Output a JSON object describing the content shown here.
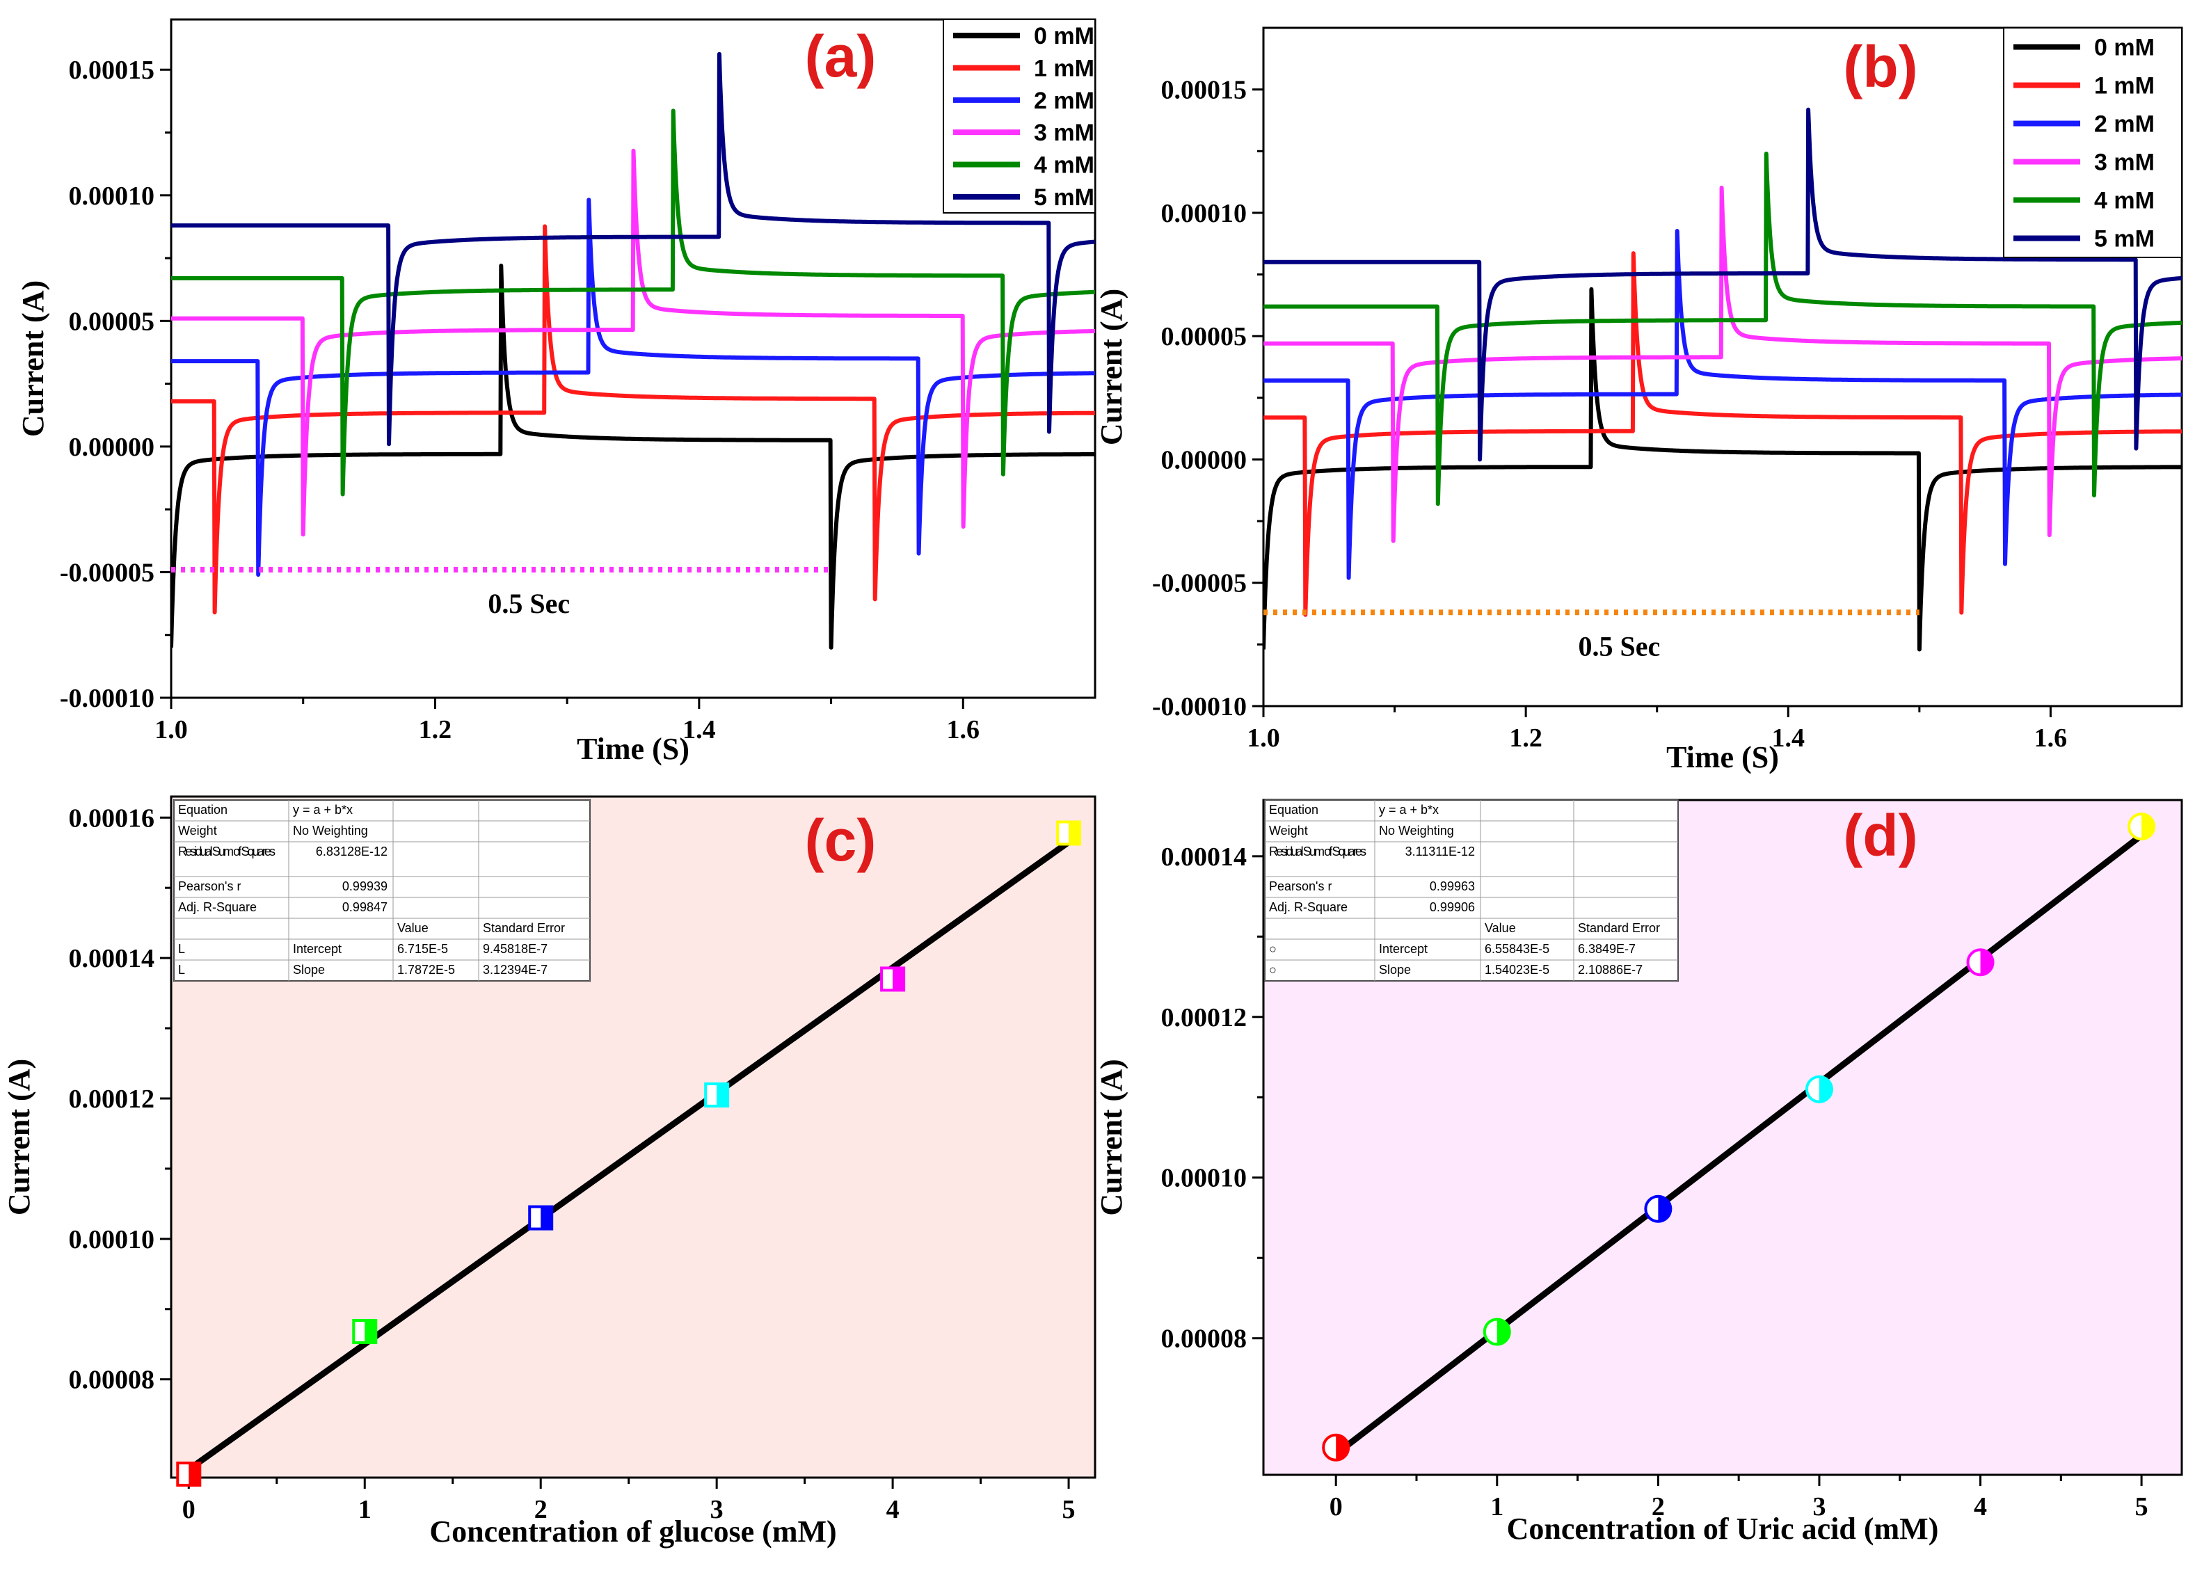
{
  "figure": {
    "palette": {
      "c0": "#000000",
      "c1": "#ff1a1a",
      "c2": "#1a1aff",
      "c3": "#ff33ff",
      "c4": "#008800",
      "c5": "#000080",
      "dot_a": "#ff33ff",
      "dot_b": "#f5850f",
      "bg_c": "#fde8e6",
      "bg_d": "#fde8fd",
      "marker_colors": [
        "#ff0000",
        "#00ff00",
        "#0000ff",
        "#00ffff",
        "#ff00ff",
        "#ffff00"
      ]
    }
  },
  "chart_data": [
    {
      "panel": "a",
      "type": "line",
      "label": "(a)",
      "xlabel": "Time (S)",
      "ylabel": "Current (A)",
      "xlim": [
        1.0,
        1.7
      ],
      "ylim": [
        -0.0001,
        0.00017
      ],
      "xticks": [
        1.0,
        1.2,
        1.4,
        1.6
      ],
      "xtick_labels": [
        "1.0",
        "1.2",
        "1.4",
        "1.6"
      ],
      "yticks": [
        -0.0001,
        -5e-05,
        0.0,
        5e-05,
        0.0001,
        0.00015
      ],
      "ytick_labels": [
        "-0.00010",
        "-0.00005",
        "0.00000",
        "0.00005",
        "0.00010",
        "0.00015"
      ],
      "legend_position": "top-right",
      "series": [
        {
          "name": "0 mM",
          "delay": 0.0,
          "pre": 0.0,
          "base_on": -1.5e-06,
          "peak_on": 6.8e-05,
          "neg_peak": -7.6e-05
        },
        {
          "name": "1 mM",
          "delay": 0.033,
          "pre": 1.8e-05,
          "base_on": 1.5e-05,
          "peak_on": 8.6e-05,
          "neg_peak": -6.2e-05
        },
        {
          "name": "2 mM",
          "delay": 0.066,
          "pre": 3.4e-05,
          "base_on": 3.1e-05,
          "peak_on": 0.000102,
          "neg_peak": -4.7e-05
        },
        {
          "name": "3 mM",
          "delay": 0.1,
          "pre": 5.1e-05,
          "base_on": 4.8e-05,
          "peak_on": 0.000119,
          "neg_peak": -3.1e-05
        },
        {
          "name": "4 mM",
          "delay": 0.13,
          "pre": 6.7e-05,
          "base_on": 6.4e-05,
          "peak_on": 0.000137,
          "neg_peak": -1.5e-05
        },
        {
          "name": "5 mM",
          "delay": 0.165,
          "pre": 8.8e-05,
          "base_on": 8.5e-05,
          "peak_on": 0.000158,
          "neg_peak": 5e-06
        }
      ],
      "annotation": {
        "text": "0.5 Sec",
        "y": -4.9e-05,
        "x_start": 1.0,
        "x_end": 1.5
      }
    },
    {
      "panel": "b",
      "type": "line",
      "label": "(b)",
      "xlabel": "Time (S)",
      "ylabel": "Current (A)",
      "xlim": [
        1.0,
        1.7
      ],
      "ylim": [
        -0.0001,
        0.000175
      ],
      "xticks": [
        1.0,
        1.2,
        1.4,
        1.6
      ],
      "xtick_labels": [
        "1.0",
        "1.2",
        "1.4",
        "1.6"
      ],
      "yticks": [
        -0.0001,
        -5e-05,
        0.0,
        5e-05,
        0.0001,
        0.00015
      ],
      "ytick_labels": [
        "-0.00010",
        "-0.00005",
        "0.00000",
        "0.00005",
        "0.00010",
        "0.00015"
      ],
      "legend_position": "top-right",
      "series": [
        {
          "name": "0 mM",
          "delay": 0.0,
          "pre": -5e-06,
          "base_on": -1.5e-06,
          "peak_on": 6.5e-05,
          "neg_peak": -7.3e-05
        },
        {
          "name": "1 mM",
          "delay": 0.032,
          "pre": 1.7e-05,
          "base_on": 1.3e-05,
          "peak_on": 8e-05,
          "neg_peak": -5.9e-05
        },
        {
          "name": "2 mM",
          "delay": 0.065,
          "pre": 3.2e-05,
          "base_on": 2.8e-05,
          "peak_on": 9.5e-05,
          "neg_peak": -4.4e-05
        },
        {
          "name": "3 mM",
          "delay": 0.099,
          "pre": 4.7e-05,
          "base_on": 4.3e-05,
          "peak_on": 0.000111,
          "neg_peak": -2.9e-05
        },
        {
          "name": "4 mM",
          "delay": 0.133,
          "pre": 6.2e-05,
          "base_on": 5.8e-05,
          "peak_on": 0.000125,
          "neg_peak": -1.4e-05
        },
        {
          "name": "5 mM",
          "delay": 0.165,
          "pre": 8e-05,
          "base_on": 7.7e-05,
          "peak_on": 0.000143,
          "neg_peak": 4e-06
        }
      ],
      "annotation": {
        "text": "0.5 Sec",
        "y": -6.2e-05,
        "x_start": 1.0,
        "x_end": 1.5
      }
    },
    {
      "panel": "c",
      "type": "scatter",
      "label": "(c)",
      "xlabel": "Concentration of glucose (mM)",
      "ylabel": "Current (A)",
      "xlim": [
        -0.1,
        5.15
      ],
      "ylim": [
        6.6e-05,
        0.000163
      ],
      "xticks": [
        0,
        1,
        2,
        3,
        4,
        5
      ],
      "xtick_labels": [
        "0",
        "1",
        "2",
        "3",
        "4",
        "5"
      ],
      "yticks": [
        8e-05,
        0.0001,
        0.00012,
        0.00014,
        0.00016
      ],
      "ytick_labels": [
        "0.00008",
        "0.00010",
        "0.00012",
        "0.00014",
        "0.00016"
      ],
      "marker": "square",
      "x": [
        0,
        1,
        2,
        3,
        4,
        5
      ],
      "y": [
        6.65e-05,
        8.68e-05,
        0.000103,
        0.0001205,
        0.000137,
        0.0001578
      ],
      "fit": {
        "intercept": 6.715e-05,
        "slope": 1.7872e-05,
        "x_range": [
          0,
          5
        ]
      },
      "fit_table": {
        "rows": [
          [
            "Equation",
            "y = a + b*x",
            "",
            ""
          ],
          [
            "Weight",
            "No Weighting",
            "",
            ""
          ],
          [
            "Residual Sum of Squares",
            "6.83128E-12",
            "",
            ""
          ],
          [
            "Pearson's r",
            "0.99939",
            "",
            ""
          ],
          [
            "Adj. R-Square",
            "0.99847",
            "",
            ""
          ],
          [
            "",
            "",
            "Value",
            "Standard Error"
          ],
          [
            "L",
            "Intercept",
            "6.715E-5",
            "9.45818E-7"
          ],
          [
            "L",
            "Slope",
            "1.7872E-5",
            "3.12394E-7"
          ]
        ]
      }
    },
    {
      "panel": "d",
      "type": "scatter",
      "label": "(d)",
      "xlabel": "Concentration of Uric acid (mM)",
      "ylabel": "Current (A)",
      "xlim": [
        -0.45,
        5.25
      ],
      "ylim": [
        6.3e-05,
        0.000147
      ],
      "xticks": [
        0,
        1,
        2,
        3,
        4,
        5
      ],
      "xtick_labels": [
        "0",
        "1",
        "2",
        "3",
        "4",
        "5"
      ],
      "yticks": [
        8e-05,
        0.0001,
        0.00012,
        0.00014
      ],
      "ytick_labels": [
        "0.00008",
        "0.00010",
        "0.00012",
        "0.00014"
      ],
      "marker": "circle",
      "x": [
        0,
        1,
        2,
        3,
        4,
        5
      ],
      "y": [
        6.64e-05,
        8.08e-05,
        9.61e-05,
        0.000111,
        0.0001268,
        0.0001437
      ],
      "fit": {
        "intercept": 6.55843e-05,
        "slope": 1.54023e-05,
        "x_range": [
          0,
          5
        ]
      },
      "fit_table": {
        "rows": [
          [
            "Equation",
            "y = a + b*x",
            "",
            ""
          ],
          [
            "Weight",
            "No Weighting",
            "",
            ""
          ],
          [
            "Residual Sum of Squares",
            "3.11311E-12",
            "",
            ""
          ],
          [
            "Pearson's r",
            "0.99963",
            "",
            ""
          ],
          [
            "Adj. R-Square",
            "0.99906",
            "",
            ""
          ],
          [
            "",
            "",
            "Value",
            "Standard Error"
          ],
          [
            "○",
            "Intercept",
            "6.55843E-5",
            "6.3849E-7"
          ],
          [
            "○",
            "Slope",
            "1.54023E-5",
            "2.10886E-7"
          ]
        ]
      }
    }
  ]
}
